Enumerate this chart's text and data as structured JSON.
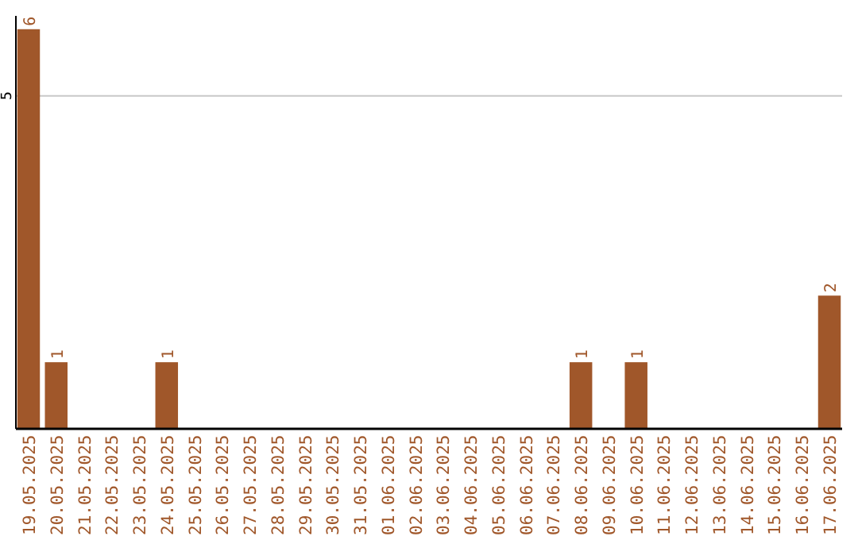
{
  "chart_data": {
    "type": "bar",
    "categories": [
      "19.05.2025",
      "20.05.2025",
      "21.05.2025",
      "22.05.2025",
      "23.05.2025",
      "24.05.2025",
      "25.05.2025",
      "26.05.2025",
      "27.05.2025",
      "28.05.2025",
      "29.05.2025",
      "30.05.2025",
      "31.05.2025",
      "01.06.2025",
      "02.06.2025",
      "03.06.2025",
      "04.06.2025",
      "05.06.2025",
      "06.06.2025",
      "07.06.2025",
      "08.06.2025",
      "09.06.2025",
      "10.06.2025",
      "11.06.2025",
      "12.06.2025",
      "13.06.2025",
      "14.06.2025",
      "15.06.2025",
      "16.06.2025",
      "17.06.2025"
    ],
    "values": [
      6,
      1,
      0,
      0,
      0,
      1,
      0,
      0,
      0,
      0,
      0,
      0,
      0,
      0,
      0,
      0,
      0,
      0,
      0,
      0,
      1,
      0,
      1,
      0,
      0,
      0,
      0,
      0,
      0,
      2
    ],
    "value_labels": [
      "6",
      "1",
      null,
      null,
      null,
      "1",
      null,
      null,
      null,
      null,
      null,
      null,
      null,
      null,
      null,
      null,
      null,
      null,
      null,
      null,
      "1",
      null,
      "1",
      null,
      null,
      null,
      null,
      null,
      null,
      "2"
    ],
    "color": "#a0572a",
    "ylim": [
      0,
      6.2
    ],
    "yticks": [
      5
    ],
    "grid": "y"
  }
}
